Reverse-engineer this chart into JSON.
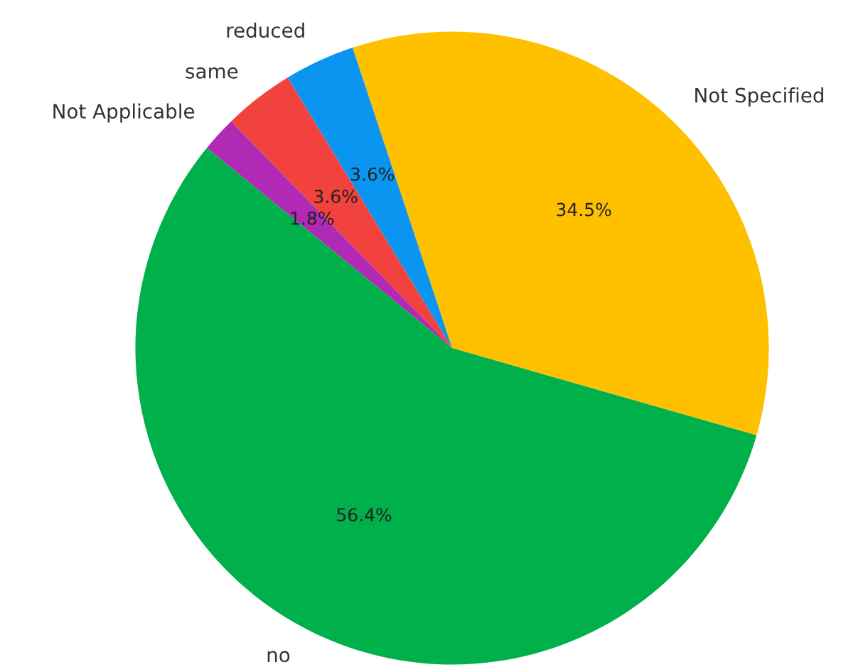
{
  "chart_data": {
    "type": "pie",
    "categories": [
      "Not Specified",
      "reduced",
      "same",
      "Not Applicable",
      "no"
    ],
    "values": [
      34.5,
      3.6,
      3.6,
      1.8,
      56.4
    ],
    "value_labels": [
      "34.5%",
      "3.6%",
      "3.6%",
      "1.8%",
      "56.4%"
    ],
    "colors": [
      "#ffc000",
      "#0a96f0",
      "#f2423e",
      "#b02ab6",
      "#00b04a"
    ]
  }
}
